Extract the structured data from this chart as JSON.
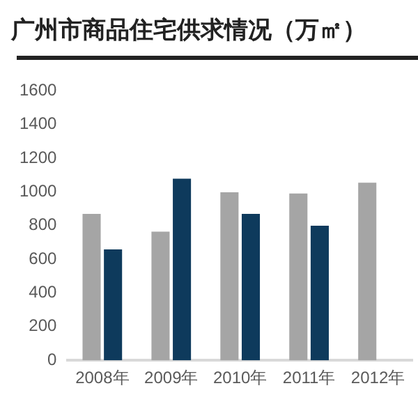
{
  "chart_data": {
    "type": "bar",
    "title": "广州市商品住宅供求情况（万㎡）",
    "categories": [
      "2008年",
      "2009年",
      "2010年",
      "2011年",
      "2012年"
    ],
    "series": [
      {
        "color": "#a5a5a5",
        "values": [
          870,
          764,
          998,
          990,
          1055
        ]
      },
      {
        "color": "#0e3a5c",
        "values": [
          659,
          1078,
          870,
          799,
          null
        ]
      }
    ],
    "ylim": [
      0,
      1600
    ],
    "yticks": [
      0,
      200,
      400,
      600,
      800,
      1000,
      1200,
      1400,
      1600
    ],
    "grid": false,
    "legend": false
  }
}
